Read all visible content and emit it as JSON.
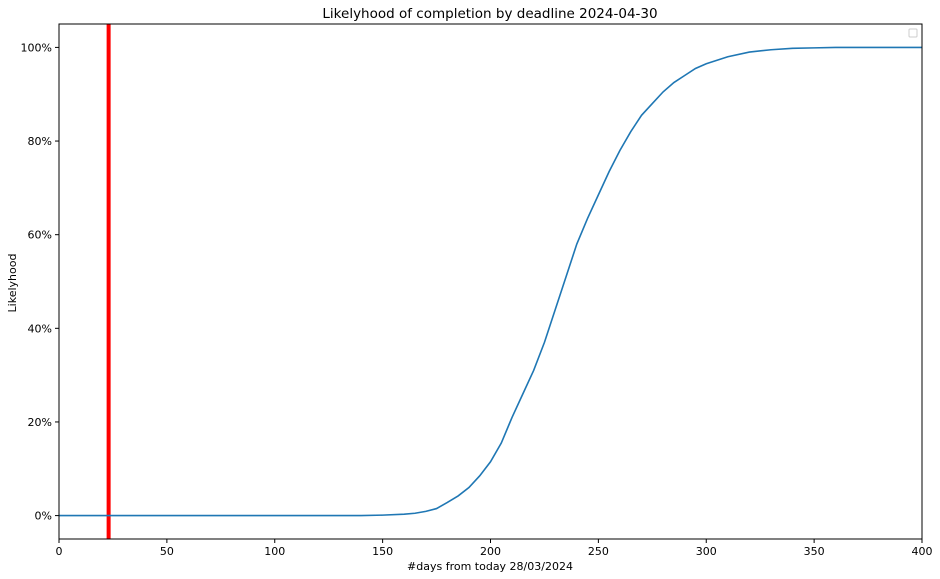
{
  "chart_data": {
    "type": "line",
    "title": "Likelyhood of completion by deadline 2024-04-30",
    "xlabel": "#days from today 28/03/2024",
    "ylabel": "Likelyhood",
    "xlim": [
      0,
      400
    ],
    "ylim": [
      -0.05,
      1.05
    ],
    "x_ticks": [
      0,
      50,
      100,
      150,
      200,
      250,
      300,
      350,
      400
    ],
    "x_tick_labels": [
      "0",
      "50",
      "100",
      "150",
      "200",
      "250",
      "300",
      "350",
      "400"
    ],
    "y_ticks": [
      0,
      0.2,
      0.4,
      0.6,
      0.8,
      1.0
    ],
    "y_tick_labels": [
      "0%",
      "20%",
      "40%",
      "60%",
      "80%",
      "100%"
    ],
    "grid": false,
    "legend": "upper-right (empty)",
    "deadline_line": {
      "x": 23,
      "color": "#ff0000"
    },
    "series": [
      {
        "color": "#1f77b4",
        "x": [
          0,
          140,
          150,
          160,
          165,
          170,
          175,
          180,
          185,
          190,
          195,
          200,
          205,
          210,
          215,
          220,
          225,
          230,
          235,
          240,
          245,
          250,
          255,
          260,
          265,
          270,
          275,
          280,
          285,
          290,
          295,
          300,
          310,
          320,
          330,
          340,
          350,
          360,
          400
        ],
        "y": [
          0,
          0,
          0.001,
          0.003,
          0.005,
          0.009,
          0.015,
          0.028,
          0.042,
          0.06,
          0.085,
          0.115,
          0.155,
          0.21,
          0.26,
          0.31,
          0.37,
          0.44,
          0.51,
          0.58,
          0.635,
          0.685,
          0.735,
          0.78,
          0.82,
          0.855,
          0.88,
          0.905,
          0.925,
          0.94,
          0.955,
          0.965,
          0.98,
          0.99,
          0.995,
          0.998,
          0.999,
          1.0,
          1.0
        ]
      }
    ]
  }
}
